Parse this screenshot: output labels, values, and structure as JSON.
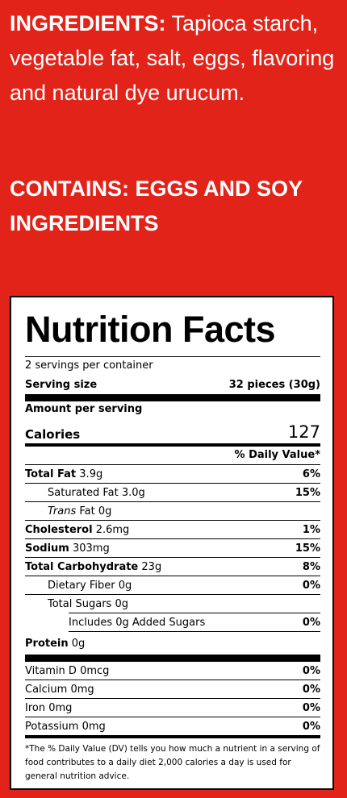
{
  "ingredients": {
    "label": "INGREDIENTS:",
    "text": " Tapioca starch, vegetable fat, salt, eggs, flavoring and natural dye urucum."
  },
  "contains": "CONTAINS: EGGS AND SOY INGREDIENTS",
  "nutrition": {
    "title": "Nutrition Facts",
    "servings_per_container": "2 servings per container",
    "serving_size_label": "Serving size",
    "serving_size_value": "32 pieces (30g)",
    "amount_per_serving": "Amount per serving",
    "calories_label": "Calories",
    "calories_value": "127",
    "dv_header": "% Daily Value*",
    "rows": {
      "total_fat": {
        "label": "Total Fat",
        "amount": " 3.9g",
        "dv": "6%"
      },
      "saturated_fat": {
        "label": "Saturated Fat 3.0g",
        "dv": "15%"
      },
      "trans_fat": {
        "label_italic": "Trans",
        "label": " Fat 0g"
      },
      "cholesterol": {
        "label": "Cholesterol",
        "amount": " 2.6mg",
        "dv": "1%"
      },
      "sodium": {
        "label": "Sodium",
        "amount": " 303mg",
        "dv": "15%"
      },
      "total_carb": {
        "label": "Total Carbohydrate",
        "amount": " 23g",
        "dv": "8%"
      },
      "dietary_fiber": {
        "label": "Dietary Fiber 0g",
        "dv": "0%"
      },
      "total_sugars": {
        "label": "Total Sugars 0g"
      },
      "added_sugars": {
        "label": "Includes 0g Added Sugars",
        "dv": "0%"
      },
      "protein": {
        "label": "Protein",
        "amount": " 0g"
      },
      "vitamin_d": {
        "label": "Vitamin D 0mcg",
        "dv": "0%"
      },
      "calcium": {
        "label": "Calcium 0mg",
        "dv": "0%"
      },
      "iron": {
        "label": "Iron 0mg",
        "dv": "0%"
      },
      "potassium": {
        "label": "Potassium 0mg",
        "dv": "0%"
      }
    },
    "footnote": "*The % Daily Value (DV) tells you how much a nutrient in a serving of food contributes to a daily diet 2,000 calories a day is used for general nutrition advice."
  },
  "colors": {
    "background": "#e2231a",
    "text": "#ffffff",
    "panel": "#ffffff"
  }
}
